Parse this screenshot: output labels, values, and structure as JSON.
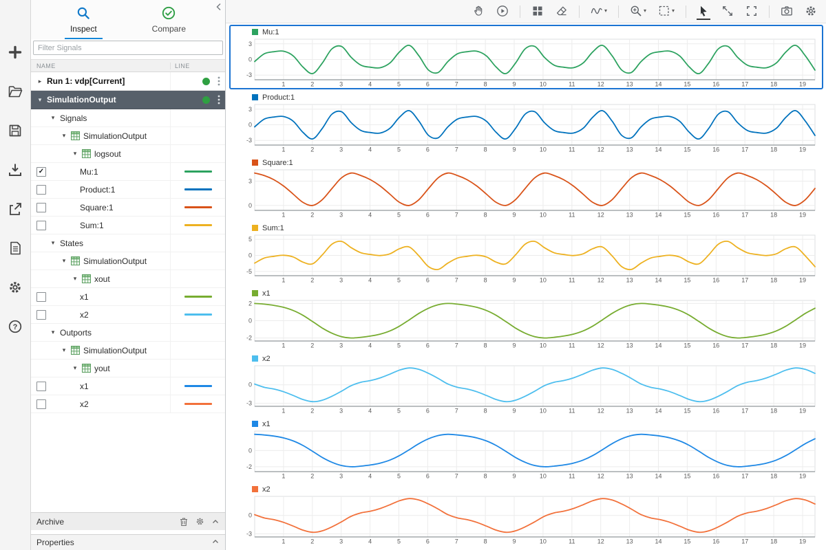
{
  "left_toolbar": {
    "items": [
      "add",
      "open-folder",
      "save",
      "import",
      "export",
      "report",
      "settings",
      "help"
    ]
  },
  "sidebar": {
    "tabs": [
      {
        "label": "Inspect",
        "icon": "search-icon",
        "active": true
      },
      {
        "label": "Compare",
        "icon": "check-circle-icon",
        "active": false
      }
    ],
    "filter": {
      "placeholder": "Filter Signals"
    },
    "columns": [
      "NAME",
      "LINE"
    ],
    "tree": [
      {
        "type": "run",
        "label": "Run 1: vdp[Current]",
        "caret": "collapsed",
        "status_dot": true,
        "menu": true
      },
      {
        "type": "run-child",
        "label": "SimulationOutput",
        "caret": "expanded",
        "selected": true,
        "status_dot": true,
        "menu": true
      },
      {
        "type": "group",
        "label": "Signals",
        "level": 1
      },
      {
        "type": "dataset",
        "label": "SimulationOutput",
        "level": 2
      },
      {
        "type": "dataset",
        "label": "logsout",
        "level": 3
      },
      {
        "type": "signal",
        "label": "Mu:1",
        "checked": true,
        "color": "#2CA25F"
      },
      {
        "type": "signal",
        "label": "Product:1",
        "checked": false,
        "color": "#0072BD"
      },
      {
        "type": "signal",
        "label": "Square:1",
        "checked": false,
        "color": "#D95319"
      },
      {
        "type": "signal",
        "label": "Sum:1",
        "checked": false,
        "color": "#EDB120"
      },
      {
        "type": "group",
        "label": "States",
        "level": 1
      },
      {
        "type": "dataset",
        "label": "SimulationOutput",
        "level": 2
      },
      {
        "type": "dataset",
        "label": "xout",
        "level": 3
      },
      {
        "type": "signal",
        "label": "x1",
        "checked": false,
        "color": "#77AC30"
      },
      {
        "type": "signal",
        "label": "x2",
        "checked": false,
        "color": "#4DBEEE"
      },
      {
        "type": "group",
        "label": "Outports",
        "level": 1
      },
      {
        "type": "dataset",
        "label": "SimulationOutput",
        "level": 2
      },
      {
        "type": "dataset",
        "label": "yout",
        "level": 3
      },
      {
        "type": "signal",
        "label": "x1",
        "checked": false,
        "color": "#1E88E5"
      },
      {
        "type": "signal",
        "label": "x2",
        "checked": false,
        "color": "#F2713B"
      }
    ],
    "archive": {
      "label": "Archive"
    },
    "properties": {
      "label": "Properties"
    }
  },
  "toolbar": {
    "items": [
      {
        "name": "pan-hand"
      },
      {
        "name": "replay"
      },
      {
        "name": "sep"
      },
      {
        "name": "layout-grid"
      },
      {
        "name": "eraser"
      },
      {
        "name": "sep"
      },
      {
        "name": "signal-wave",
        "caret": true
      },
      {
        "name": "sep"
      },
      {
        "name": "zoom-in",
        "caret": true
      },
      {
        "name": "zoom-region",
        "caret": true
      },
      {
        "name": "sep"
      },
      {
        "name": "pointer",
        "active": true
      },
      {
        "name": "fit-view"
      },
      {
        "name": "fullscreen"
      },
      {
        "name": "sep"
      },
      {
        "name": "camera"
      },
      {
        "name": "gear"
      }
    ]
  },
  "chart_data": {
    "type": "line",
    "x_start": 0,
    "x_step": 0.335,
    "x_max": 19.43,
    "x_ticks": [
      1,
      2,
      3,
      4,
      5,
      6,
      7,
      8,
      9,
      10,
      11,
      12,
      13,
      14,
      15,
      16,
      17,
      18,
      19
    ],
    "grid": true,
    "series": {
      "mu": [
        -0.39,
        1.1,
        1.5,
        1.59,
        0.68,
        -1.47,
        -2.71,
        -0.7,
        2.05,
        2.5,
        0.39,
        -1.1,
        -1.5,
        -1.59,
        -0.68,
        1.47,
        2.71,
        0.7,
        -2.05,
        -2.5,
        -0.39,
        1.1,
        1.5,
        1.59,
        0.68,
        -1.47,
        -2.71,
        -0.7,
        2.05,
        2.5,
        0.39,
        -1.1,
        -1.5,
        -1.59,
        -0.68,
        1.47,
        2.71,
        0.7,
        -2.05,
        -2.5,
        -0.39,
        1.1,
        1.5,
        1.59,
        0.68,
        -1.47,
        -2.71,
        -0.7,
        2.05,
        2.5,
        0.39,
        -1.1,
        -1.5,
        -1.59,
        -0.68,
        1.47,
        2.71,
        0.7,
        -2.05
      ],
      "square": [
        4,
        3.69,
        3.17,
        2.4,
        1.39,
        0.38,
        0.01,
        0.72,
        2.1,
        3.42,
        4,
        3.69,
        3.17,
        2.4,
        1.39,
        0.38,
        0.01,
        0.72,
        2.1,
        3.42,
        4,
        3.69,
        3.17,
        2.4,
        1.39,
        0.38,
        0.01,
        0.72,
        2.1,
        3.42,
        4,
        3.69,
        3.17,
        2.4,
        1.39,
        0.38,
        0.01,
        0.72,
        2.1,
        3.42,
        4,
        3.69,
        3.17,
        2.4,
        1.39,
        0.38,
        0.01,
        0.72,
        2.1,
        3.42,
        4,
        3.69,
        3.17,
        2.4,
        1.39,
        0.38,
        0.01,
        0.72,
        2.1
      ],
      "sum": [
        -2.39,
        -0.82,
        -0.28,
        0.04,
        -0.5,
        -2.09,
        -2.61,
        0.15,
        3.5,
        4.35,
        2.39,
        0.82,
        0.28,
        -0.04,
        0.5,
        2.09,
        2.61,
        -0.15,
        -3.5,
        -4.35,
        -2.39,
        -0.82,
        -0.28,
        0.04,
        -0.5,
        -2.09,
        -2.61,
        0.15,
        3.5,
        4.35,
        2.39,
        0.82,
        0.28,
        -0.04,
        0.5,
        2.09,
        2.61,
        -0.15,
        -3.5,
        -4.35,
        -2.39,
        -0.82,
        -0.28,
        0.04,
        -0.5,
        -2.09,
        -2.61,
        0.15,
        3.5,
        4.35,
        2.39,
        0.82,
        0.28,
        -0.04,
        0.5,
        2.09,
        2.61,
        -0.15,
        -3.5
      ],
      "x1": [
        2,
        1.92,
        1.78,
        1.55,
        1.18,
        0.62,
        -0.1,
        -0.85,
        -1.45,
        -1.85,
        -2,
        -1.92,
        -1.78,
        -1.55,
        -1.18,
        -0.62,
        0.1,
        0.85,
        1.45,
        1.85,
        2,
        1.92,
        1.78,
        1.55,
        1.18,
        0.62,
        -0.1,
        -0.85,
        -1.45,
        -1.85,
        -2,
        -1.92,
        -1.78,
        -1.55,
        -1.18,
        -0.62,
        0.1,
        0.85,
        1.45,
        1.85,
        2,
        1.92,
        1.78,
        1.55,
        1.18,
        0.62,
        -0.1,
        -0.85,
        -1.45,
        -1.85,
        -2,
        -1.92,
        -1.78,
        -1.55,
        -1.18,
        -0.62,
        0.1,
        0.85,
        1.45
      ],
      "x2": [
        0.13,
        -0.41,
        -0.69,
        -1.13,
        -1.74,
        -2.39,
        -2.74,
        -2.51,
        -1.86,
        -1.03,
        -0.13,
        0.41,
        0.69,
        1.13,
        1.74,
        2.39,
        2.74,
        2.51,
        1.86,
        1.03,
        0.13,
        -0.41,
        -0.69,
        -1.13,
        -1.74,
        -2.39,
        -2.74,
        -2.51,
        -1.86,
        -1.03,
        -0.13,
        0.41,
        0.69,
        1.13,
        1.74,
        2.39,
        2.74,
        2.51,
        1.86,
        1.03,
        0.13,
        -0.41,
        -0.69,
        -1.13,
        -1.74,
        -2.39,
        -2.74,
        -2.51,
        -1.86,
        -1.03,
        -0.13,
        0.41,
        0.69,
        1.13,
        1.74,
        2.39,
        2.74,
        2.51,
        1.86
      ]
    },
    "plots": [
      {
        "label": "Mu:1",
        "color": "#2CA25F",
        "series": "mu",
        "y_ticks": [
          3,
          0,
          -3
        ],
        "y_min": -3.9,
        "y_max": 3.9,
        "selected": true
      },
      {
        "label": "Product:1",
        "color": "#0072BD",
        "series": "mu",
        "y_ticks": [
          3,
          0,
          -3
        ],
        "y_min": -3.9,
        "y_max": 3.9
      },
      {
        "label": "Square:1",
        "color": "#D95319",
        "series": "square",
        "y_ticks": [
          3,
          0
        ],
        "y_min": -0.6,
        "y_max": 4.4
      },
      {
        "label": "Sum:1",
        "color": "#EDB120",
        "series": "sum",
        "y_ticks": [
          5,
          0,
          -5
        ],
        "y_min": -6.3,
        "y_max": 6.3
      },
      {
        "label": "x1",
        "color": "#77AC30",
        "series": "x1",
        "y_ticks": [
          2,
          0,
          -2
        ],
        "y_min": -2.35,
        "y_max": 2.35
      },
      {
        "label": "x2",
        "color": "#4DBEEE",
        "series": "x2",
        "y_ticks": [
          0,
          -3
        ],
        "y_min": -3.5,
        "y_max": 3.1
      },
      {
        "label": "x1",
        "color": "#1E88E5",
        "series": "x1",
        "y_ticks": [
          0,
          -2
        ],
        "y_min": -2.6,
        "y_max": 2.4
      },
      {
        "label": "x2",
        "color": "#F2713B",
        "series": "x2",
        "y_ticks": [
          0,
          -3
        ],
        "y_min": -3.5,
        "y_max": 3.1
      }
    ]
  }
}
